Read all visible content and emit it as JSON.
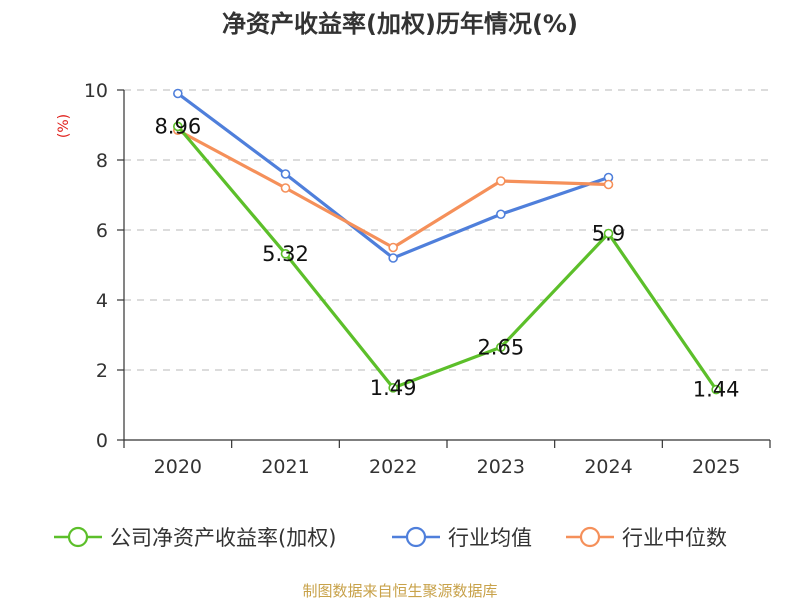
{
  "chart_data": {
    "type": "line",
    "title": "净资产收益率(加权)历年情况(%)",
    "ylabel": "(%)",
    "xlabel": "",
    "categories": [
      "2020",
      "2021",
      "2022",
      "2023",
      "2024",
      "2025"
    ],
    "ylim": [
      0,
      10
    ],
    "yticks": [
      0,
      2,
      4,
      6,
      8,
      10
    ],
    "grid": true,
    "legend_position": "bottom",
    "series": [
      {
        "name": "公司净资产收益率(加权)",
        "color": "#5cbf2a",
        "values": [
          8.96,
          5.32,
          1.49,
          2.65,
          5.9,
          1.44
        ],
        "labels": [
          "8.96",
          "5.32",
          "1.49",
          "2.65",
          "5.9",
          "1.44"
        ]
      },
      {
        "name": "行业均值",
        "color": "#4f7fdb",
        "values": [
          9.9,
          7.6,
          5.2,
          6.45,
          7.5,
          null
        ]
      },
      {
        "name": "行业中位数",
        "color": "#f5905a",
        "values": [
          8.85,
          7.2,
          5.5,
          7.4,
          7.3,
          null
        ]
      }
    ]
  },
  "footer": "制图数据来自恒生聚源数据库"
}
